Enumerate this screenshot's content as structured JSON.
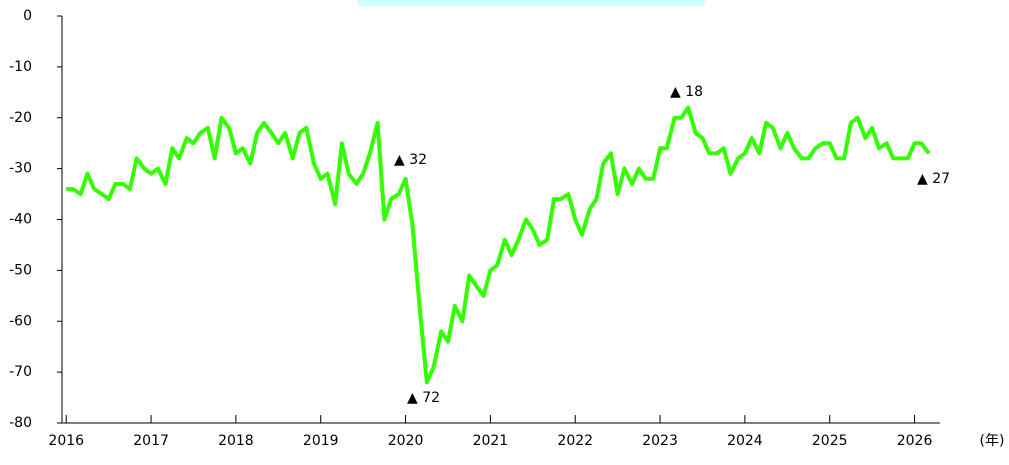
{
  "chart_data": {
    "type": "line",
    "x": [
      2016,
      2016.08,
      2016.17,
      2016.25,
      2016.33,
      2016.42,
      2016.5,
      2016.58,
      2016.67,
      2016.75,
      2016.83,
      2016.92,
      2017,
      2017.08,
      2017.17,
      2017.25,
      2017.33,
      2017.42,
      2017.5,
      2017.58,
      2017.67,
      2017.75,
      2017.83,
      2017.92,
      2018,
      2018.08,
      2018.17,
      2018.25,
      2018.33,
      2018.42,
      2018.5,
      2018.58,
      2018.67,
      2018.75,
      2018.83,
      2018.92,
      2019,
      2019.08,
      2019.17,
      2019.25,
      2019.33,
      2019.42,
      2019.5,
      2019.58,
      2019.67,
      2019.75,
      2019.83,
      2019.92,
      2020,
      2020.08,
      2020.17,
      2020.25,
      2020.33,
      2020.42,
      2020.5,
      2020.58,
      2020.67,
      2020.75,
      2020.83,
      2020.92,
      2021,
      2021.08,
      2021.17,
      2021.25,
      2021.33,
      2021.42,
      2021.5,
      2021.58,
      2021.67,
      2021.75,
      2021.83,
      2021.92,
      2022,
      2022.08,
      2022.17,
      2022.25,
      2022.33,
      2022.42,
      2022.5,
      2022.58,
      2022.67,
      2022.75,
      2022.83,
      2022.92,
      2023,
      2023.08,
      2023.17,
      2023.25,
      2023.33,
      2023.42,
      2023.5,
      2023.58,
      2023.67,
      2023.75,
      2023.83,
      2023.92,
      2024,
      2024.08,
      2024.17,
      2024.25,
      2024.33,
      2024.42,
      2024.5,
      2024.58,
      2024.67,
      2024.75,
      2024.83,
      2024.92,
      2025,
      2025.08,
      2025.17,
      2025.25,
      2025.33,
      2025.42,
      2025.5,
      2025.58,
      2025.67,
      2025.75,
      2025.83,
      2025.92,
      2026,
      2026.08,
      2026.17
    ],
    "series": [
      {
        "color": "#33ff00",
        "values": [
          -34,
          -34,
          -35,
          -31,
          -34,
          -35,
          -36,
          -33,
          -33,
          -34,
          -28,
          -30,
          -31,
          -30,
          -33,
          -26,
          -28,
          -24,
          -25,
          -23,
          -22,
          -28,
          -20,
          -22,
          -27,
          -26,
          -29,
          -23,
          -21,
          -23,
          -25,
          -23,
          -28,
          -23,
          -22,
          -29,
          -32,
          -31,
          -37,
          -25,
          -31,
          -33,
          -31,
          -27,
          -21,
          -40,
          -36,
          -35,
          -32,
          -41,
          -58,
          -72,
          -69,
          -62,
          -64,
          -57,
          -60,
          -51,
          -53,
          -55,
          -50,
          -49,
          -44,
          -47,
          -44,
          -40,
          -42,
          -45,
          -44,
          -36,
          -36,
          -35,
          -40,
          -43,
          -38,
          -36,
          -29,
          -27,
          -35,
          -30,
          -33,
          -30,
          -32,
          -32,
          -26,
          -26,
          -20,
          -20,
          -18,
          -23,
          -24,
          -27,
          -27,
          -26,
          -31,
          -28,
          -27,
          -24,
          -27,
          -21,
          -22,
          -26,
          -23,
          -26,
          -28,
          -28,
          -26,
          -25,
          -25,
          -28,
          -28,
          -21,
          -20,
          -24,
          -22,
          -26,
          -25,
          -28,
          -28,
          -28,
          -25,
          -25,
          -27
        ]
      }
    ],
    "annotations": [
      "▲ 32",
      "▲ 72",
      "▲ 18",
      "▲ 27"
    ],
    "x_label": "(年)",
    "xlim": [
      2015.95,
      2026.3
    ],
    "xticks": [
      2016,
      2017,
      2018,
      2019,
      2020,
      2021,
      2022,
      2023,
      2024,
      2025,
      2026
    ],
    "ylim": [
      -80,
      0
    ],
    "yticks": [
      0,
      -10,
      -20,
      -30,
      -40,
      -50,
      -60,
      -70,
      -80
    ]
  }
}
